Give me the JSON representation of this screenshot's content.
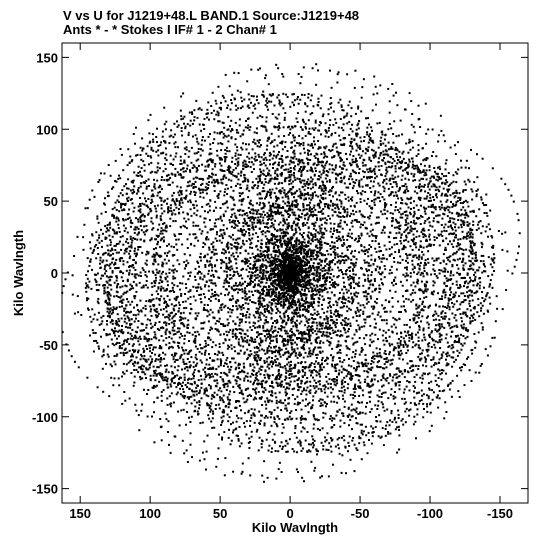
{
  "chart_data": {
    "type": "scatter",
    "title": "V vs U for J1219+48.L BAND.1   Source:J1219+48",
    "subtitle": "Ants * - *    Stokes I  IF# 1 - 2  Chan# 1",
    "xlabel": "Kilo Wavlngth",
    "ylabel": "Kilo Wavlngth",
    "xlim": [
      163,
      -170
    ],
    "ylim": [
      -160,
      160
    ],
    "x_reversed": true,
    "xticks": [
      150,
      100,
      50,
      0,
      -50,
      -100,
      -150
    ],
    "yticks": [
      -150,
      -100,
      -50,
      0,
      50,
      100,
      150
    ],
    "grid": false,
    "legend": "none",
    "point_color": "#000000",
    "description_of_points": "dense elliptical u-v coverage tracks, symmetric about origin, concentrated near center, extending to about |u|=165 and |v|=158",
    "point_count_estimate": 9000
  }
}
